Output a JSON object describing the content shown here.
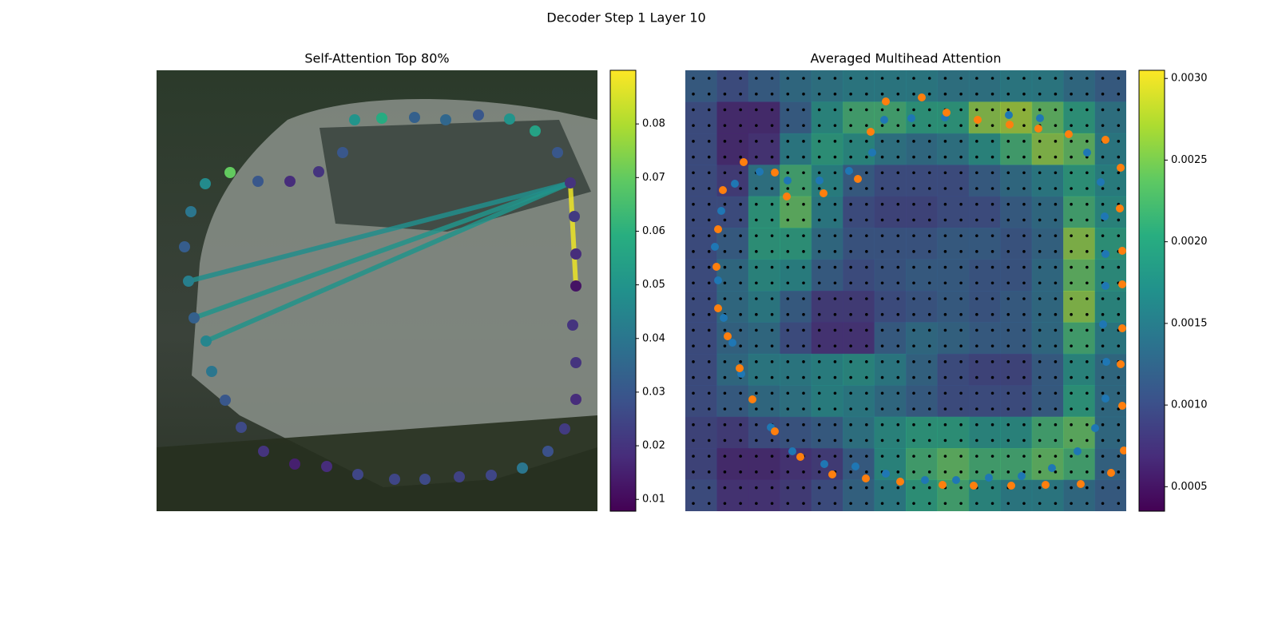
{
  "title": "Decoder Step 1 Layer 10",
  "chart_data": [
    {
      "type": "scatter",
      "title": "Self-Attention Top 80%",
      "xlim": [
        0,
        552
      ],
      "ylim": [
        552,
        0
      ],
      "colormap": "viridis",
      "clim": [
        0.0078,
        0.09
      ],
      "colorbar_ticks": [
        0.01,
        0.02,
        0.03,
        0.04,
        0.05,
        0.06,
        0.07,
        0.08
      ],
      "x": [
        62,
        47,
        40,
        35,
        43,
        61,
        92,
        127,
        167,
        203,
        233,
        248,
        282,
        323,
        362,
        403,
        442,
        474,
        502,
        518,
        523,
        525,
        525,
        521,
        525,
        525,
        511,
        490,
        458,
        419,
        379,
        336,
        298,
        252,
        213,
        173,
        134,
        106,
        86,
        69
      ],
      "y": [
        213,
        242,
        288,
        331,
        375,
        410,
        424,
        413,
        413,
        425,
        449,
        490,
        492,
        493,
        490,
        496,
        491,
        476,
        449,
        411,
        369,
        322,
        282,
        233,
        186,
        140,
        103,
        75,
        54,
        45,
        43,
        40,
        40,
        46,
        56,
        59,
        75,
        105,
        139,
        175
      ],
      "values": [
        0.045,
        0.033,
        0.043,
        0.032,
        0.04,
        0.047,
        0.07,
        0.03,
        0.018,
        0.02,
        0.03,
        0.05,
        0.058,
        0.033,
        0.035,
        0.03,
        0.05,
        0.055,
        0.03,
        0.02,
        0.022,
        0.018,
        0.012,
        0.02,
        0.02,
        0.018,
        0.022,
        0.028,
        0.04,
        0.025,
        0.024,
        0.026,
        0.025,
        0.025,
        0.018,
        0.015,
        0.02,
        0.026,
        0.03,
        0.04
      ],
      "edges": {
        "from": [
          19,
          19,
          19,
          19
        ],
        "to": [
          0,
          1,
          2,
          22
        ],
        "values": [
          0.05,
          0.05,
          0.048,
          0.088
        ]
      }
    },
    {
      "type": "heatmap",
      "title": "Averaged Multihead Attention",
      "xlim": [
        0,
        552
      ],
      "ylim": [
        552,
        0
      ],
      "colormap": "viridis",
      "clim": [
        0.00035,
        0.00305
      ],
      "colorbar_ticks": [
        0.0005,
        {
          "value": 0.001,
          "label": "0.0010"
        },
        0.0015,
        {
          "value": 0.002,
          "label": "0.0020"
        },
        0.0025,
        {
          "value": 0.003,
          "label": "0.0030"
        }
      ],
      "z": [
        [
          0.0012,
          0.001,
          0.0012,
          0.0014,
          0.0015,
          0.0016,
          0.0016,
          0.0016,
          0.0015,
          0.0015,
          0.0016,
          0.0016,
          0.0014,
          0.0012
        ],
        [
          0.001,
          0.0006,
          0.0006,
          0.0012,
          0.0018,
          0.0022,
          0.0022,
          0.002,
          0.002,
          0.0026,
          0.0027,
          0.0024,
          0.002,
          0.0015
        ],
        [
          0.001,
          0.0006,
          0.0007,
          0.0016,
          0.002,
          0.0018,
          0.0015,
          0.0014,
          0.0015,
          0.0018,
          0.0022,
          0.0026,
          0.0024,
          0.0016
        ],
        [
          0.001,
          0.0008,
          0.0015,
          0.0022,
          0.0017,
          0.0012,
          0.001,
          0.001,
          0.001,
          0.0012,
          0.0014,
          0.0016,
          0.002,
          0.0017
        ],
        [
          0.001,
          0.001,
          0.002,
          0.0024,
          0.0016,
          0.001,
          0.0009,
          0.0009,
          0.001,
          0.001,
          0.0012,
          0.0014,
          0.0022,
          0.0018
        ],
        [
          0.001,
          0.0012,
          0.002,
          0.002,
          0.0014,
          0.0011,
          0.0011,
          0.0011,
          0.0012,
          0.0012,
          0.0011,
          0.0013,
          0.0026,
          0.002
        ],
        [
          0.001,
          0.0014,
          0.0018,
          0.0017,
          0.0012,
          0.001,
          0.0011,
          0.0012,
          0.0012,
          0.0011,
          0.0011,
          0.0014,
          0.0024,
          0.0019
        ],
        [
          0.001,
          0.0014,
          0.0016,
          0.0012,
          0.0008,
          0.0008,
          0.001,
          0.0011,
          0.0012,
          0.0011,
          0.0012,
          0.0014,
          0.0026,
          0.0018
        ],
        [
          0.001,
          0.0013,
          0.0014,
          0.001,
          0.0007,
          0.0007,
          0.0012,
          0.0014,
          0.0013,
          0.0012,
          0.0012,
          0.0014,
          0.0022,
          0.0016
        ],
        [
          0.001,
          0.0014,
          0.0016,
          0.0016,
          0.0017,
          0.0018,
          0.0016,
          0.0013,
          0.001,
          0.0009,
          0.0009,
          0.0012,
          0.0018,
          0.0014
        ],
        [
          0.001,
          0.0012,
          0.0014,
          0.0015,
          0.0017,
          0.0016,
          0.0014,
          0.0012,
          0.001,
          0.001,
          0.001,
          0.0012,
          0.002,
          0.0014
        ],
        [
          0.0009,
          0.0008,
          0.001,
          0.0011,
          0.0012,
          0.0015,
          0.0018,
          0.002,
          0.002,
          0.0018,
          0.0018,
          0.0022,
          0.0024,
          0.0014
        ],
        [
          0.0009,
          0.0006,
          0.0006,
          0.0007,
          0.0008,
          0.0012,
          0.0018,
          0.0022,
          0.0024,
          0.0022,
          0.0022,
          0.0024,
          0.0022,
          0.0013
        ],
        [
          0.001,
          0.0007,
          0.0007,
          0.0008,
          0.001,
          0.0013,
          0.0016,
          0.002,
          0.0022,
          0.0018,
          0.0016,
          0.0016,
          0.0014,
          0.0012
        ]
      ],
      "series": [
        {
          "color": "#1f77b4",
          "x": [
            41,
            45,
            62,
            93,
            128,
            168,
            205,
            234,
            249,
            283,
            325,
            405,
            444,
            503,
            520,
            525,
            526,
            526,
            523,
            527,
            526,
            513,
            491,
            459,
            421,
            380,
            339,
            300,
            251,
            213,
            174,
            134,
            107,
            70,
            59,
            48,
            37
          ],
          "y": [
            289,
            376,
            410,
            425,
            414,
            414,
            426,
            449,
            490,
            492,
            493,
            496,
            492,
            449,
            412,
            369,
            322,
            282,
            234,
            187,
            141,
            104,
            75,
            54,
            44,
            42,
            39,
            39,
            47,
            56,
            59,
            75,
            105,
            172,
            211,
            242,
            331
          ]
        },
        {
          "color": "#ff7f0e",
          "x": [
            39,
            41,
            47,
            73,
            112,
            127,
            173,
            216,
            232,
            251,
            296,
            327,
            366,
            406,
            442,
            480,
            526,
            545,
            544,
            547,
            547,
            547,
            545,
            547,
            549,
            533,
            495,
            451,
            408,
            361,
            322,
            269,
            226,
            184,
            144,
            112,
            84,
            68,
            53,
            41
          ],
          "y": [
            306,
            353,
            402,
            437,
            424,
            394,
            398,
            416,
            475,
            513,
            518,
            499,
            490,
            484,
            479,
            472,
            465,
            430,
            379,
            326,
            284,
            229,
            184,
            132,
            76,
            48,
            34,
            33,
            32,
            32,
            33,
            37,
            41,
            46,
            68,
            100,
            140,
            179,
            219,
            254
          ]
        }
      ]
    }
  ]
}
